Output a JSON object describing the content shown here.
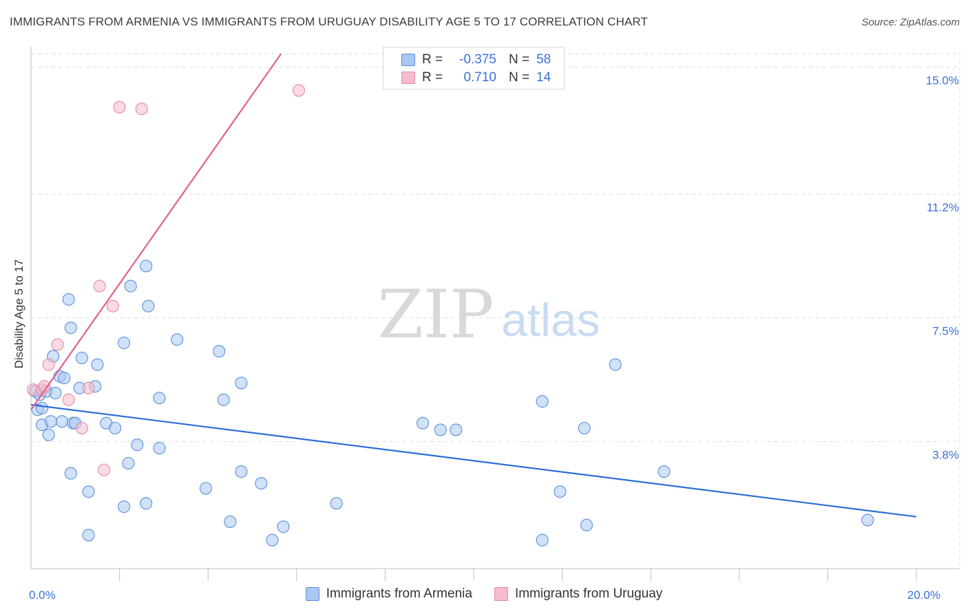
{
  "title": "IMMIGRANTS FROM ARMENIA VS IMMIGRANTS FROM URUGUAY DISABILITY AGE 5 TO 17 CORRELATION CHART",
  "source": "Source: ZipAtlas.com",
  "watermark": {
    "zip": "ZIP",
    "atlas": "atlas"
  },
  "legend": {
    "r_label": "R =",
    "n_label": "N =",
    "rows": [
      {
        "r": "-0.375",
        "n": "58"
      },
      {
        "r": "0.710",
        "n": "14"
      }
    ]
  },
  "colors": {
    "armenia_fill": "#aac8f2",
    "armenia_stroke": "#5a8fd8",
    "armenia_line": "#2b6fd6",
    "uruguay_fill": "#f5bccd",
    "uruguay_stroke": "#e28aa6",
    "uruguay_line": "#e0608c",
    "tick_text": "#3a6fd8",
    "grid": "#dddddd"
  },
  "chart_data": {
    "type": "scatter",
    "title": "IMMIGRANTS FROM ARMENIA VS IMMIGRANTS FROM URUGUAY DISABILITY AGE 5 TO 17 CORRELATION CHART",
    "xlabel": "",
    "ylabel": "Disability Age 5 to 17",
    "xlim": [
      0,
      20
    ],
    "ylim": [
      0,
      15.4
    ],
    "x_tick_labels": [
      {
        "value": 0,
        "label": "0.0%"
      },
      {
        "value": 20,
        "label": "20.0%"
      }
    ],
    "x_minor_ticks": [
      2,
      4,
      6,
      8,
      10,
      12,
      14,
      16,
      18,
      20
    ],
    "y_ticks": [
      {
        "value": 3.8,
        "label": "3.8%"
      },
      {
        "value": 7.5,
        "label": "7.5%"
      },
      {
        "value": 11.2,
        "label": "11.2%"
      },
      {
        "value": 15.0,
        "label": "15.0%"
      }
    ],
    "grid": true,
    "legend_position": "top-center",
    "series": [
      {
        "name": "Immigrants from Armenia",
        "r": -0.375,
        "n": 58,
        "trend": {
          "x": [
            0,
            20
          ],
          "y": [
            4.9,
            1.55
          ]
        },
        "points": [
          [
            0.1,
            5.3
          ],
          [
            0.15,
            4.75
          ],
          [
            0.2,
            5.2
          ],
          [
            0.25,
            4.8
          ],
          [
            0.25,
            4.3
          ],
          [
            0.35,
            5.3
          ],
          [
            0.4,
            4.0
          ],
          [
            0.45,
            4.4
          ],
          [
            0.5,
            6.35
          ],
          [
            0.55,
            5.25
          ],
          [
            0.65,
            5.75
          ],
          [
            0.7,
            4.4
          ],
          [
            0.75,
            5.7
          ],
          [
            0.85,
            8.05
          ],
          [
            0.9,
            7.2
          ],
          [
            0.9,
            2.85
          ],
          [
            0.95,
            4.35
          ],
          [
            1.0,
            4.35
          ],
          [
            1.1,
            5.4
          ],
          [
            1.15,
            6.3
          ],
          [
            1.3,
            2.3
          ],
          [
            1.3,
            1.0
          ],
          [
            1.45,
            5.45
          ],
          [
            1.5,
            6.1
          ],
          [
            1.7,
            4.35
          ],
          [
            1.9,
            4.2
          ],
          [
            2.1,
            6.75
          ],
          [
            2.1,
            1.85
          ],
          [
            2.2,
            3.15
          ],
          [
            2.25,
            8.45
          ],
          [
            2.4,
            3.7
          ],
          [
            2.6,
            9.05
          ],
          [
            2.6,
            1.95
          ],
          [
            2.65,
            7.85
          ],
          [
            2.9,
            5.1
          ],
          [
            2.9,
            3.6
          ],
          [
            3.3,
            6.85
          ],
          [
            3.95,
            2.4
          ],
          [
            4.25,
            6.5
          ],
          [
            4.35,
            5.05
          ],
          [
            4.5,
            1.4
          ],
          [
            4.75,
            2.9
          ],
          [
            4.75,
            5.55
          ],
          [
            5.2,
            2.55
          ],
          [
            5.45,
            0.85
          ],
          [
            5.7,
            1.25
          ],
          [
            6.9,
            1.95
          ],
          [
            8.85,
            4.35
          ],
          [
            9.25,
            4.15
          ],
          [
            9.6,
            4.15
          ],
          [
            11.55,
            5.0
          ],
          [
            11.55,
            0.85
          ],
          [
            11.95,
            2.3
          ],
          [
            12.5,
            4.2
          ],
          [
            12.55,
            1.3
          ],
          [
            13.2,
            6.1
          ],
          [
            14.3,
            2.9
          ],
          [
            18.9,
            1.45
          ]
        ]
      },
      {
        "name": "Immigrants from Uruguay",
        "r": 0.71,
        "n": 14,
        "trend": {
          "x": [
            0,
            5.65
          ],
          "y": [
            4.75,
            15.4
          ]
        },
        "points": [
          [
            0.05,
            5.35
          ],
          [
            0.25,
            5.35
          ],
          [
            0.3,
            5.45
          ],
          [
            0.4,
            6.1
          ],
          [
            0.6,
            6.7
          ],
          [
            0.85,
            5.05
          ],
          [
            1.15,
            4.2
          ],
          [
            1.3,
            5.4
          ],
          [
            1.55,
            8.45
          ],
          [
            1.65,
            2.95
          ],
          [
            1.85,
            7.85
          ],
          [
            2.0,
            13.8
          ],
          [
            2.5,
            13.75
          ],
          [
            6.05,
            14.3
          ]
        ]
      }
    ]
  }
}
